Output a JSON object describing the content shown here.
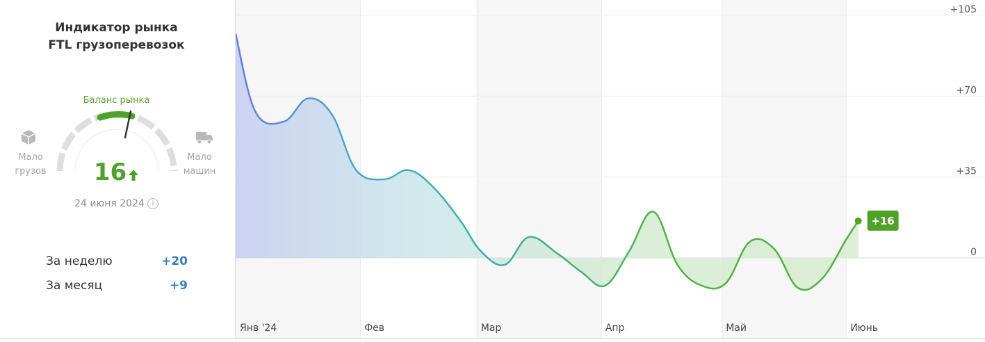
{
  "panel": {
    "title_line1": "Индикатор рынка",
    "title_line2": "FTL грузоперевозок",
    "gauge_label": "Баланс рынка",
    "left_label_1": "Мало",
    "left_label_2": "грузов",
    "right_label_1": "Мало",
    "right_label_2": "машин",
    "value": "16",
    "trend": "up",
    "date": "24 июня 2024",
    "week_label": "За неделю",
    "week_value": "+20",
    "month_label": "За месяц",
    "month_value": "+9",
    "icons": [
      "box-icon",
      "truck-icon",
      "arrow-up-icon",
      "info-icon"
    ]
  },
  "colors": {
    "accent_green": "#4fa12a",
    "stat_blue": "#3e7ec1",
    "line_start": "#6c7bd8",
    "line_mid": "#3fb0b8",
    "line_end": "#52b044"
  },
  "chart_data": {
    "type": "area",
    "title": "",
    "xlabel": "",
    "ylabel": "",
    "ylim": [
      -35,
      110
    ],
    "yticks": [
      "+105",
      "+70",
      "+35",
      "0"
    ],
    "ytick_values": [
      105,
      70,
      35,
      0
    ],
    "months": [
      "Янв '24",
      "Фев",
      "Мар",
      "Апр",
      "Май",
      "Июнь"
    ],
    "month_starts": [
      0,
      31,
      60,
      91,
      121,
      152
    ],
    "x_end": 176,
    "grid": true,
    "series": [
      {
        "values": [
          [
            0,
            97
          ],
          [
            5,
            63
          ],
          [
            12,
            59
          ],
          [
            18,
            69
          ],
          [
            24,
            62
          ],
          [
            30,
            38
          ],
          [
            37,
            34
          ],
          [
            43,
            38
          ],
          [
            49,
            31
          ],
          [
            56,
            16
          ],
          [
            61,
            3
          ],
          [
            67,
            -3
          ],
          [
            73,
            9
          ],
          [
            80,
            2
          ],
          [
            86,
            -6
          ],
          [
            92,
            -12
          ],
          [
            98,
            3
          ],
          [
            104,
            20
          ],
          [
            110,
            -3
          ],
          [
            116,
            -12
          ],
          [
            122,
            -11
          ],
          [
            128,
            7
          ],
          [
            134,
            4
          ],
          [
            140,
            -13
          ],
          [
            146,
            -9
          ],
          [
            152,
            8
          ],
          [
            155,
            16
          ]
        ]
      }
    ],
    "last_value_label": "+16"
  }
}
